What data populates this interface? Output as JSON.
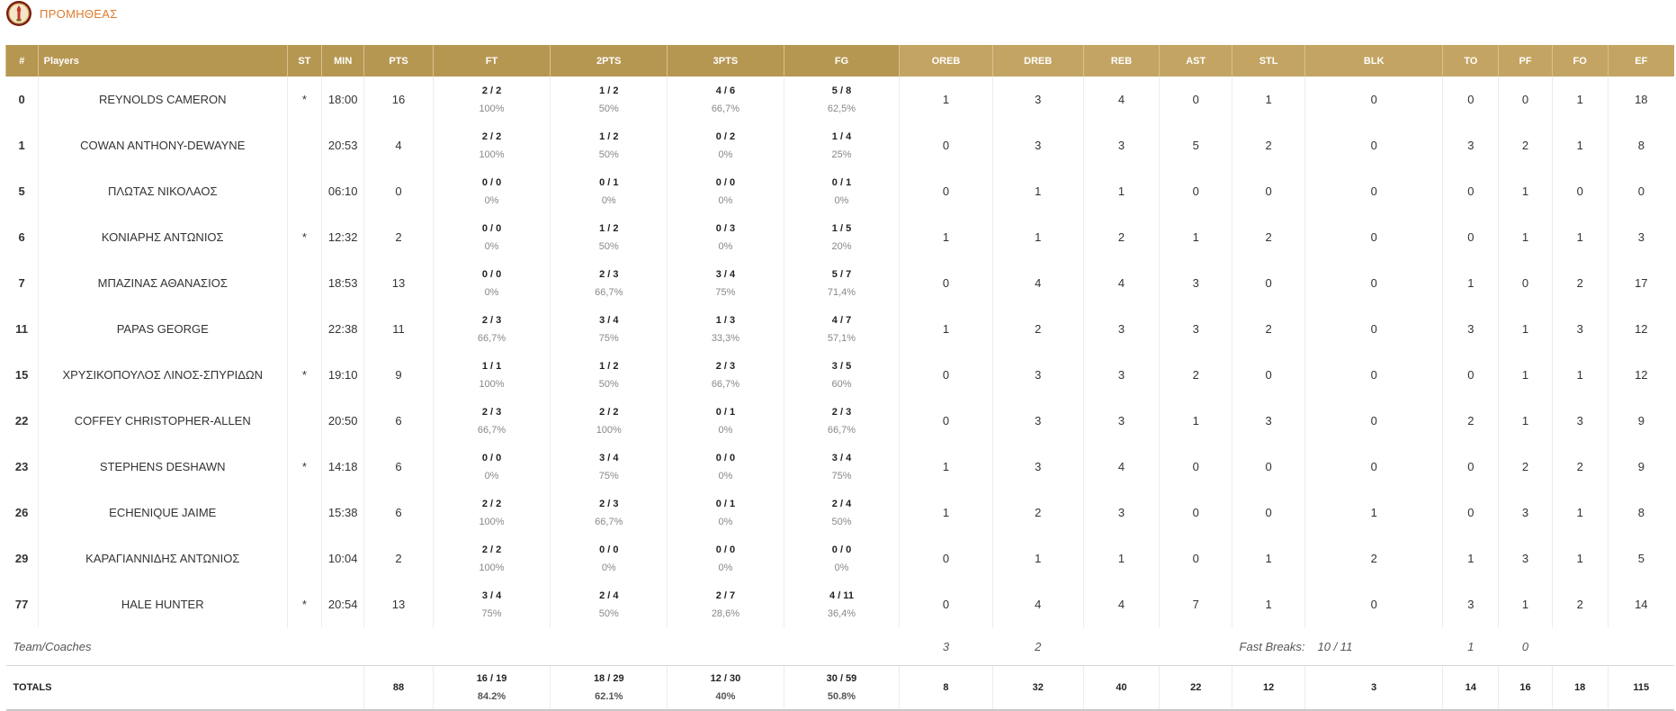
{
  "team": {
    "name": "ΠΡΟΜΗΘΕΑΣ",
    "logo_icon": "team-crest-icon",
    "accent": "#e07a2c"
  },
  "header_color": "#c3a462",
  "columns": {
    "num": "#",
    "players": "Players",
    "st": "ST",
    "min": "MIN",
    "pts": "PTS",
    "ft": "FT",
    "two": "2PTS",
    "three": "3PTS",
    "fg": "FG",
    "oreb": "OREB",
    "dreb": "DREB",
    "reb": "REB",
    "ast": "AST",
    "stl": "STL",
    "blk": "BLK",
    "to": "TO",
    "pf": "PF",
    "fo": "FO",
    "ef": "EF"
  },
  "players": [
    {
      "num": "0",
      "name": "REYNOLDS CAMERON",
      "st": "*",
      "min": "18:00",
      "pts": "16",
      "ft": "2 / 2",
      "ft_pct": "100%",
      "two": "1 / 2",
      "two_pct": "50%",
      "three": "4 / 6",
      "three_pct": "66,7%",
      "fg": "5 / 8",
      "fg_pct": "62,5%",
      "oreb": "1",
      "dreb": "3",
      "reb": "4",
      "ast": "0",
      "stl": "1",
      "blk": "0",
      "to": "0",
      "pf": "0",
      "fo": "1",
      "ef": "18"
    },
    {
      "num": "1",
      "name": "COWAN ANTHONY-DEWAYNE",
      "st": "",
      "min": "20:53",
      "pts": "4",
      "ft": "2 / 2",
      "ft_pct": "100%",
      "two": "1 / 2",
      "two_pct": "50%",
      "three": "0 / 2",
      "three_pct": "0%",
      "fg": "1 / 4",
      "fg_pct": "25%",
      "oreb": "0",
      "dreb": "3",
      "reb": "3",
      "ast": "5",
      "stl": "2",
      "blk": "0",
      "to": "3",
      "pf": "2",
      "fo": "1",
      "ef": "8"
    },
    {
      "num": "5",
      "name": "ΠΛΩΤΑΣ ΝΙΚΟΛΑΟΣ",
      "st": "",
      "min": "06:10",
      "pts": "0",
      "ft": "0 / 0",
      "ft_pct": "0%",
      "two": "0 / 1",
      "two_pct": "0%",
      "three": "0 / 0",
      "three_pct": "0%",
      "fg": "0 / 1",
      "fg_pct": "0%",
      "oreb": "0",
      "dreb": "1",
      "reb": "1",
      "ast": "0",
      "stl": "0",
      "blk": "0",
      "to": "0",
      "pf": "1",
      "fo": "0",
      "ef": "0"
    },
    {
      "num": "6",
      "name": "ΚΟΝΙΑΡΗΣ ΑΝΤΩΝΙΟΣ",
      "st": "*",
      "min": "12:32",
      "pts": "2",
      "ft": "0 / 0",
      "ft_pct": "0%",
      "two": "1 / 2",
      "two_pct": "50%",
      "three": "0 / 3",
      "three_pct": "0%",
      "fg": "1 / 5",
      "fg_pct": "20%",
      "oreb": "1",
      "dreb": "1",
      "reb": "2",
      "ast": "1",
      "stl": "2",
      "blk": "0",
      "to": "0",
      "pf": "1",
      "fo": "1",
      "ef": "3"
    },
    {
      "num": "7",
      "name": "ΜΠΑΖΙΝΑΣ ΑΘΑΝΑΣΙΟΣ",
      "st": "",
      "min": "18:53",
      "pts": "13",
      "ft": "0 / 0",
      "ft_pct": "0%",
      "two": "2 / 3",
      "two_pct": "66,7%",
      "three": "3 / 4",
      "three_pct": "75%",
      "fg": "5 / 7",
      "fg_pct": "71,4%",
      "oreb": "0",
      "dreb": "4",
      "reb": "4",
      "ast": "3",
      "stl": "0",
      "blk": "0",
      "to": "1",
      "pf": "0",
      "fo": "2",
      "ef": "17"
    },
    {
      "num": "11",
      "name": "PAPAS GEORGE",
      "st": "",
      "min": "22:38",
      "pts": "11",
      "ft": "2 / 3",
      "ft_pct": "66,7%",
      "two": "3 / 4",
      "two_pct": "75%",
      "three": "1 / 3",
      "three_pct": "33,3%",
      "fg": "4 / 7",
      "fg_pct": "57,1%",
      "oreb": "1",
      "dreb": "2",
      "reb": "3",
      "ast": "3",
      "stl": "2",
      "blk": "0",
      "to": "3",
      "pf": "1",
      "fo": "3",
      "ef": "12"
    },
    {
      "num": "15",
      "name": "ΧΡΥΣΙΚΟΠΟΥΛΟΣ ΛΙΝΟΣ-ΣΠΥΡΙΔΩΝ",
      "st": "*",
      "min": "19:10",
      "pts": "9",
      "ft": "1 / 1",
      "ft_pct": "100%",
      "two": "1 / 2",
      "two_pct": "50%",
      "three": "2 / 3",
      "three_pct": "66,7%",
      "fg": "3 / 5",
      "fg_pct": "60%",
      "oreb": "0",
      "dreb": "3",
      "reb": "3",
      "ast": "2",
      "stl": "0",
      "blk": "0",
      "to": "0",
      "pf": "1",
      "fo": "1",
      "ef": "12"
    },
    {
      "num": "22",
      "name": "COFFEY CHRISTOPHER-ALLEN",
      "st": "",
      "min": "20:50",
      "pts": "6",
      "ft": "2 / 3",
      "ft_pct": "66,7%",
      "two": "2 / 2",
      "two_pct": "100%",
      "three": "0 / 1",
      "three_pct": "0%",
      "fg": "2 / 3",
      "fg_pct": "66,7%",
      "oreb": "0",
      "dreb": "3",
      "reb": "3",
      "ast": "1",
      "stl": "3",
      "blk": "0",
      "to": "2",
      "pf": "1",
      "fo": "3",
      "ef": "9"
    },
    {
      "num": "23",
      "name": "STEPHENS DESHAWN",
      "st": "*",
      "min": "14:18",
      "pts": "6",
      "ft": "0 / 0",
      "ft_pct": "0%",
      "two": "3 / 4",
      "two_pct": "75%",
      "three": "0 / 0",
      "three_pct": "0%",
      "fg": "3 / 4",
      "fg_pct": "75%",
      "oreb": "1",
      "dreb": "3",
      "reb": "4",
      "ast": "0",
      "stl": "0",
      "blk": "0",
      "to": "0",
      "pf": "2",
      "fo": "2",
      "ef": "9"
    },
    {
      "num": "26",
      "name": "ECHENIQUE JAIME",
      "st": "",
      "min": "15:38",
      "pts": "6",
      "ft": "2 / 2",
      "ft_pct": "100%",
      "two": "2 / 3",
      "two_pct": "66,7%",
      "three": "0 / 1",
      "three_pct": "0%",
      "fg": "2 / 4",
      "fg_pct": "50%",
      "oreb": "1",
      "dreb": "2",
      "reb": "3",
      "ast": "0",
      "stl": "0",
      "blk": "1",
      "to": "0",
      "pf": "3",
      "fo": "1",
      "ef": "8"
    },
    {
      "num": "29",
      "name": "ΚΑΡΑΓΙΑΝΝΙΔΗΣ ΑΝΤΩΝΙΟΣ",
      "st": "",
      "min": "10:04",
      "pts": "2",
      "ft": "2 / 2",
      "ft_pct": "100%",
      "two": "0 / 0",
      "two_pct": "0%",
      "three": "0 / 0",
      "three_pct": "0%",
      "fg": "0 / 0",
      "fg_pct": "0%",
      "oreb": "0",
      "dreb": "1",
      "reb": "1",
      "ast": "0",
      "stl": "1",
      "blk": "2",
      "to": "1",
      "pf": "3",
      "fo": "1",
      "ef": "5"
    },
    {
      "num": "77",
      "name": "HALE HUNTER",
      "st": "*",
      "min": "20:54",
      "pts": "13",
      "ft": "3 / 4",
      "ft_pct": "75%",
      "two": "2 / 4",
      "two_pct": "50%",
      "three": "2 / 7",
      "three_pct": "28,6%",
      "fg": "4 / 11",
      "fg_pct": "36,4%",
      "oreb": "0",
      "dreb": "4",
      "reb": "4",
      "ast": "7",
      "stl": "1",
      "blk": "0",
      "to": "3",
      "pf": "1",
      "fo": "2",
      "ef": "14"
    }
  ],
  "team_coaches": {
    "label": "Team/Coaches",
    "oreb": "3",
    "dreb": "2",
    "fast_breaks_label": "Fast Breaks:",
    "fast_breaks_value": "10 / 11",
    "to": "1",
    "pf": "0"
  },
  "totals": {
    "label": "TOTALS",
    "pts": "88",
    "ft": "16 / 19",
    "ft_pct": "84.2%",
    "two": "18 / 29",
    "two_pct": "62.1%",
    "three": "12 / 30",
    "three_pct": "40%",
    "fg": "30 / 59",
    "fg_pct": "50.8%",
    "oreb": "8",
    "dreb": "32",
    "reb": "40",
    "ast": "22",
    "stl": "12",
    "blk": "3",
    "to": "14",
    "pf": "16",
    "fo": "18",
    "ef": "115"
  }
}
